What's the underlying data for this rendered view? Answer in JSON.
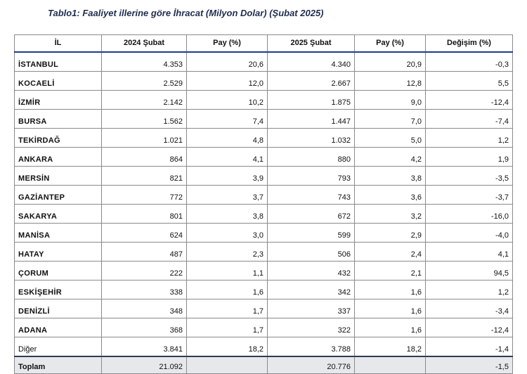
{
  "title": "Tablo1: Faaliyet illerine göre İhracat (Milyon Dolar) (Şubat 2025)",
  "table": {
    "headers": [
      "İL",
      "2024 Şubat",
      "Pay  (%)",
      "2025 Şubat",
      "Pay  (%)",
      "Değişim (%)"
    ],
    "rows": [
      [
        "İSTANBUL",
        "4.353",
        "20,6",
        "4.340",
        "20,9",
        "-0,3"
      ],
      [
        "KOCAELİ",
        "2.529",
        "12,0",
        "2.667",
        "12,8",
        "5,5"
      ],
      [
        "İZMİR",
        "2.142",
        "10,2",
        "1.875",
        "9,0",
        "-12,4"
      ],
      [
        "BURSA",
        "1.562",
        "7,4",
        "1.447",
        "7,0",
        "-7,4"
      ],
      [
        "TEKİRDAĞ",
        "1.021",
        "4,8",
        "1.032",
        "5,0",
        "1,2"
      ],
      [
        "ANKARA",
        "864",
        "4,1",
        "880",
        "4,2",
        "1,9"
      ],
      [
        "MERSİN",
        "821",
        "3,9",
        "793",
        "3,8",
        "-3,5"
      ],
      [
        "GAZİANTEP",
        "772",
        "3,7",
        "743",
        "3,6",
        "-3,7"
      ],
      [
        "SAKARYA",
        "801",
        "3,8",
        "672",
        "3,2",
        "-16,0"
      ],
      [
        "MANİSA",
        "624",
        "3,0",
        "599",
        "2,9",
        "-4,0"
      ],
      [
        "HATAY",
        "487",
        "2,3",
        "506",
        "2,4",
        "4,1"
      ],
      [
        "ÇORUM",
        "222",
        "1,1",
        "432",
        "2,1",
        "94,5"
      ],
      [
        "ESKİŞEHİR",
        "338",
        "1,6",
        "342",
        "1,6",
        "1,2"
      ],
      [
        "DENİZLİ",
        "348",
        "1,7",
        "337",
        "1,6",
        "-3,4"
      ],
      [
        "ADANA",
        "368",
        "1,7",
        "322",
        "1,6",
        "-12,4"
      ],
      [
        "Diğer",
        "3.841",
        "18,2",
        "3.788",
        "18,2",
        "-1,4"
      ]
    ],
    "total": [
      "Toplam",
      "21.092",
      "",
      "20.776",
      "",
      "-1,5"
    ]
  }
}
